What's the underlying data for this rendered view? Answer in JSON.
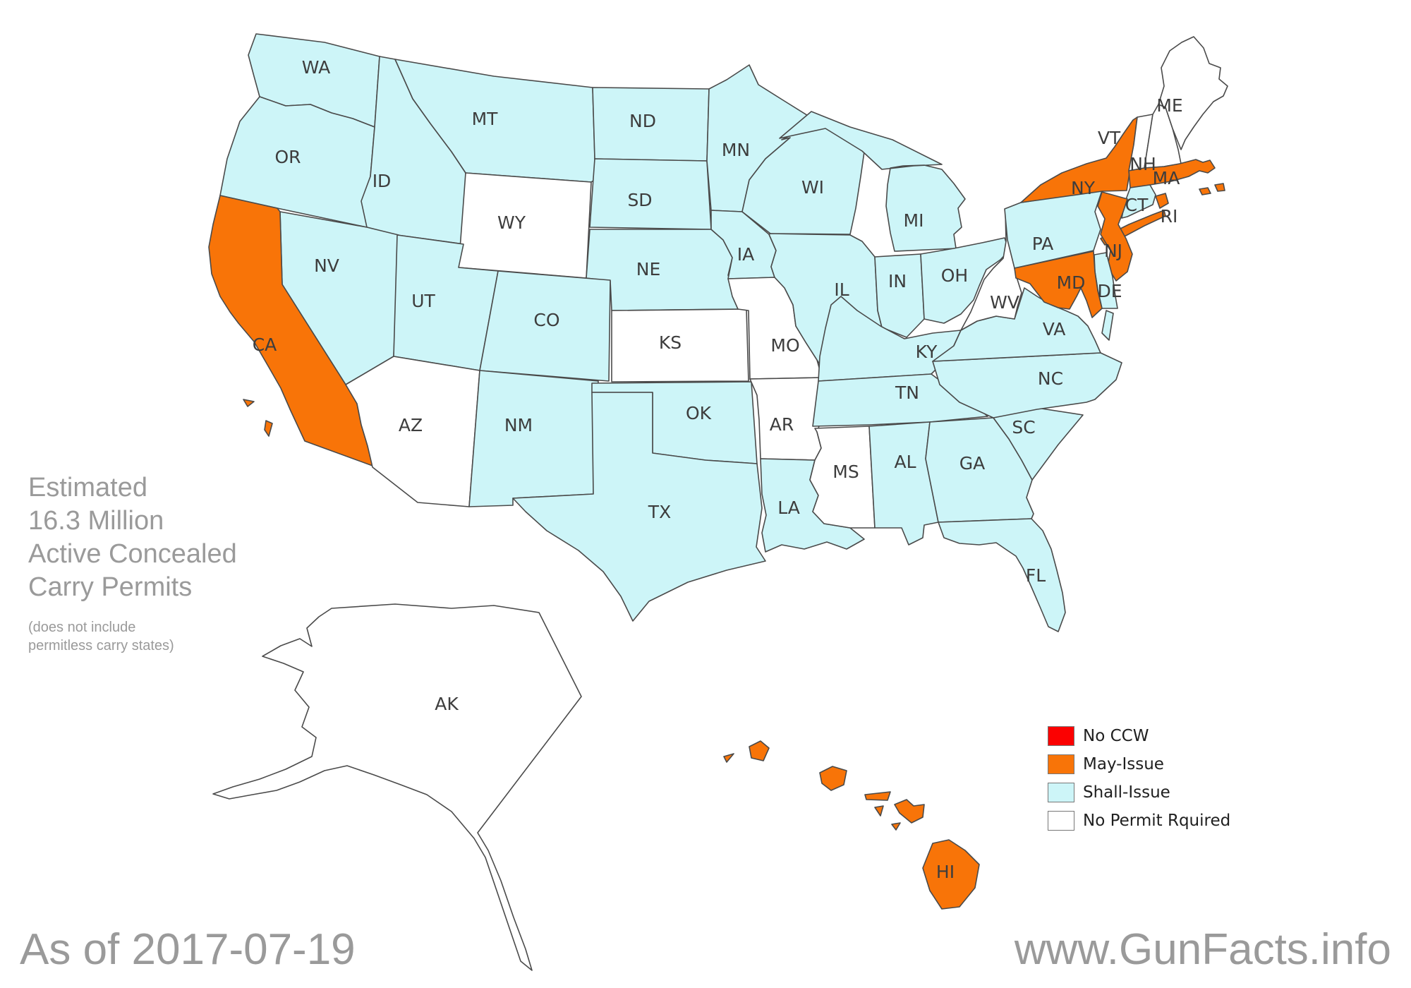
{
  "annotation": {
    "title_lines": [
      "Estimated",
      "16.3 Million",
      "Active Concealed",
      "Carry Permits"
    ],
    "note_lines": [
      "(does not include",
      "permitless carry states)"
    ]
  },
  "footer": {
    "date_text": "As of 2017-07-19",
    "website_text": "www.GunFacts.info"
  },
  "legend": {
    "items": [
      {
        "label": "No CCW",
        "key": "no_ccw",
        "color": "#fb0101"
      },
      {
        "label": "May-Issue",
        "key": "may_issue",
        "color": "#f87408"
      },
      {
        "label": "Shall-Issue",
        "key": "shall_issue",
        "color": "#cdf5f8"
      },
      {
        "label": "No Permit Rquired",
        "key": "no_permit",
        "color": "#ffffff"
      }
    ]
  },
  "map": {
    "stroke_color": "#4a4a4a",
    "label_color": "#3d3d3d",
    "status_colors": {
      "no_ccw": "#fb0101",
      "may_issue": "#f87408",
      "shall_issue": "#cdf5f8",
      "no_permit": "#ffffff"
    },
    "states": [
      {
        "abbr": "WA",
        "status": "shall_issue"
      },
      {
        "abbr": "OR",
        "status": "shall_issue"
      },
      {
        "abbr": "ID",
        "status": "shall_issue"
      },
      {
        "abbr": "MT",
        "status": "shall_issue"
      },
      {
        "abbr": "WY",
        "status": "no_permit"
      },
      {
        "abbr": "ND",
        "status": "shall_issue"
      },
      {
        "abbr": "SD",
        "status": "shall_issue"
      },
      {
        "abbr": "NE",
        "status": "shall_issue"
      },
      {
        "abbr": "KS",
        "status": "no_permit"
      },
      {
        "abbr": "NV",
        "status": "shall_issue"
      },
      {
        "abbr": "CA",
        "status": "may_issue"
      },
      {
        "abbr": "UT",
        "status": "shall_issue"
      },
      {
        "abbr": "CO",
        "status": "shall_issue"
      },
      {
        "abbr": "AZ",
        "status": "no_permit"
      },
      {
        "abbr": "NM",
        "status": "shall_issue"
      },
      {
        "abbr": "OK",
        "status": "shall_issue"
      },
      {
        "abbr": "TX",
        "status": "shall_issue"
      },
      {
        "abbr": "MN",
        "status": "shall_issue"
      },
      {
        "abbr": "IA",
        "status": "shall_issue"
      },
      {
        "abbr": "MO",
        "status": "no_permit"
      },
      {
        "abbr": "AR",
        "status": "no_permit"
      },
      {
        "abbr": "LA",
        "status": "shall_issue"
      },
      {
        "abbr": "WI",
        "status": "shall_issue"
      },
      {
        "abbr": "IL",
        "status": "shall_issue"
      },
      {
        "abbr": "MI",
        "status": "shall_issue"
      },
      {
        "abbr": "IN",
        "status": "shall_issue"
      },
      {
        "abbr": "OH",
        "status": "shall_issue"
      },
      {
        "abbr": "KY",
        "status": "shall_issue"
      },
      {
        "abbr": "TN",
        "status": "shall_issue"
      },
      {
        "abbr": "MS",
        "status": "no_permit"
      },
      {
        "abbr": "AL",
        "status": "shall_issue"
      },
      {
        "abbr": "GA",
        "status": "shall_issue"
      },
      {
        "abbr": "FL",
        "status": "shall_issue"
      },
      {
        "abbr": "SC",
        "status": "shall_issue"
      },
      {
        "abbr": "NC",
        "status": "shall_issue"
      },
      {
        "abbr": "VA",
        "status": "shall_issue"
      },
      {
        "abbr": "WV",
        "status": "no_permit"
      },
      {
        "abbr": "PA",
        "status": "shall_issue"
      },
      {
        "abbr": "NY",
        "status": "may_issue"
      },
      {
        "abbr": "VT",
        "status": "no_permit"
      },
      {
        "abbr": "NH",
        "status": "no_permit"
      },
      {
        "abbr": "ME",
        "status": "no_permit"
      },
      {
        "abbr": "MA",
        "status": "may_issue"
      },
      {
        "abbr": "CT",
        "status": "shall_issue"
      },
      {
        "abbr": "RI",
        "status": "may_issue"
      },
      {
        "abbr": "NJ",
        "status": "may_issue"
      },
      {
        "abbr": "DE",
        "status": "shall_issue"
      },
      {
        "abbr": "MD",
        "status": "may_issue"
      },
      {
        "abbr": "AK",
        "status": "no_permit"
      },
      {
        "abbr": "HI",
        "status": "may_issue"
      }
    ]
  }
}
